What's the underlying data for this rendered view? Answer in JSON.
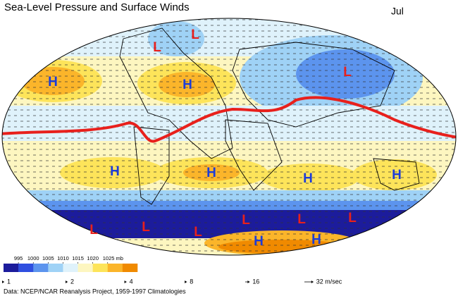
{
  "title": "Sea-Level Pressure and Surface Winds",
  "month": "Jul",
  "pressure_centers": [
    "L",
    "L",
    "L",
    "H",
    "H",
    "H",
    "H",
    "H",
    "H",
    "L",
    "L",
    "L",
    "L",
    "L",
    "L",
    "H",
    "H"
  ],
  "colorbar": {
    "ticks": [
      995,
      1000,
      1005,
      1010,
      1015,
      1020,
      {
        "value": 1025,
        "label": "1025 mb"
      }
    ],
    "colors": [
      "#1c1c9c",
      "#2f4fe0",
      "#5c94ee",
      "#9fd2f6",
      "#dff2fb",
      "#fdf6c0",
      "#fde45a",
      "#fbb52a",
      "#f08a00"
    ]
  },
  "wind_scale": {
    "ticks": [
      1,
      2,
      4,
      8,
      16,
      {
        "value": 32,
        "label": "32 m/sec"
      }
    ]
  },
  "source": "Data:  NCEP/NCAR Reanalysis Project, 1959-1997 Climatologies"
}
